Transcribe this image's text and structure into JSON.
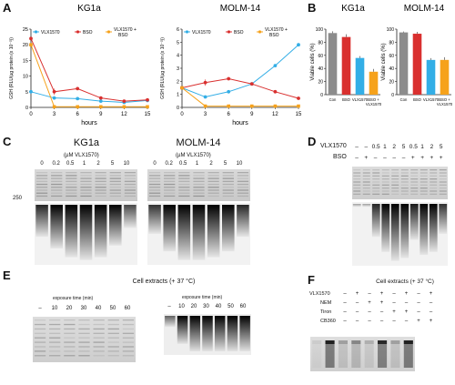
{
  "panels": {
    "A": "A",
    "B": "B",
    "C": "C",
    "D": "D",
    "E": "E",
    "F": "F"
  },
  "panel_a": {
    "ylabel": "GSH (RLU/µg protein (x 10⁻³))",
    "xlabel": "hours",
    "legend": [
      "VLX1570",
      "BSO",
      "VLX1570 + BSO"
    ],
    "charts": [
      {
        "title": "KG1a",
        "yticks": [
          "0",
          "5",
          "10",
          "15",
          "20",
          "25"
        ],
        "xticks": [
          "0",
          "3",
          "6",
          "9",
          "12",
          "15"
        ]
      },
      {
        "title": "MOLM-14",
        "yticks": [
          "0",
          "1",
          "2",
          "3",
          "4",
          "5",
          "6"
        ],
        "xticks": [
          "0",
          "3",
          "6",
          "9",
          "12",
          "15"
        ]
      }
    ]
  },
  "panel_b": {
    "ylabel": "Viable cells (%)",
    "charts": [
      {
        "title": "KG1a",
        "yticks": [
          "0",
          "20",
          "40",
          "60",
          "80",
          "100"
        ]
      },
      {
        "title": "MOLM-14",
        "yticks": [
          "0",
          "20",
          "40",
          "60",
          "80",
          "100"
        ]
      }
    ],
    "categories": [
      "Con",
      "BSO",
      "VLX1570",
      "BSO + VLX1570"
    ]
  },
  "panel_c": {
    "gels": [
      {
        "title": "KG1a",
        "conc_label": "(µM VLX1570)",
        "lanes": [
          "0",
          "0.2",
          "0.5",
          "1",
          "2",
          "5",
          "10"
        ]
      },
      {
        "title": "MOLM-14",
        "conc_label": "(µM VLX1570)",
        "lanes": [
          "0",
          "0.2",
          "0.5",
          "1",
          "2",
          "5",
          "10"
        ]
      }
    ],
    "marker": "250"
  },
  "panel_d": {
    "row1_label": "VLX1570",
    "row1": [
      "–",
      "–",
      "0.5",
      "1",
      "2",
      "5",
      "0.5",
      "1",
      "2",
      "5"
    ],
    "row2_label": "BSO",
    "row2": [
      "–",
      "+",
      "–",
      "–",
      "–",
      "–",
      "+",
      "+",
      "+",
      "+"
    ]
  },
  "panel_e": {
    "title": "Cell extracts  (+ 37 °C)",
    "gels": [
      {
        "label": "exposure time (min)",
        "lanes": [
          "–",
          "10",
          "20",
          "30",
          "40",
          "50",
          "60"
        ]
      },
      {
        "label": "exposure time (min)",
        "lanes": [
          "–",
          "10",
          "20",
          "30",
          "40",
          "50",
          "60"
        ]
      }
    ]
  },
  "panel_f": {
    "title": "Cell extracts (+ 37 °C)",
    "rows": [
      {
        "label": "VLX1570",
        "marks": [
          "–",
          "+",
          "–",
          "+",
          "–",
          "+",
          "–",
          "+"
        ]
      },
      {
        "label": "NEM",
        "marks": [
          "–",
          "–",
          "+",
          "+",
          "–",
          "–",
          "–",
          "–"
        ]
      },
      {
        "label": "Tiron",
        "marks": [
          "–",
          "–",
          "–",
          "–",
          "+",
          "+",
          "–",
          "–"
        ]
      },
      {
        "label": "CB360",
        "marks": [
          "–",
          "–",
          "–",
          "–",
          "–",
          "–",
          "+",
          "+"
        ]
      }
    ]
  },
  "chart_data": [
    {
      "type": "line",
      "title": "KG1a",
      "xlabel": "hours",
      "ylabel": "GSH (RLU/µg protein (x 10⁻³))",
      "x": [
        0,
        3,
        6,
        9,
        12,
        15
      ],
      "ylim": [
        0,
        25
      ],
      "series": [
        {
          "name": "VLX1570",
          "values": [
            5,
            3,
            2.8,
            2,
            1.6,
            2.2
          ]
        },
        {
          "name": "BSO",
          "values": [
            22,
            5,
            6,
            3,
            2,
            2.4
          ]
        },
        {
          "name": "VLX1570 + BSO",
          "values": [
            20,
            0.2,
            0.2,
            0.2,
            0.2,
            0.2
          ]
        }
      ]
    },
    {
      "type": "line",
      "title": "MOLM-14",
      "xlabel": "hours",
      "ylabel": "GSH (RLU/µg protein (x 10⁻³))",
      "x": [
        0,
        3,
        6,
        9,
        12,
        15
      ],
      "ylim": [
        0,
        6
      ],
      "series": [
        {
          "name": "VLX1570",
          "values": [
            1.5,
            0.8,
            1.2,
            1.8,
            3.2,
            4.8
          ]
        },
        {
          "name": "BSO",
          "values": [
            1.5,
            1.9,
            2.2,
            1.8,
            1.2,
            0.7
          ]
        },
        {
          "name": "VLX1570 + BSO",
          "values": [
            1.5,
            0.1,
            0.1,
            0.1,
            0.1,
            0.1
          ]
        }
      ]
    },
    {
      "type": "bar",
      "title": "KG1a",
      "ylabel": "Viable cells (%)",
      "ylim": [
        0,
        100
      ],
      "categories": [
        "Con",
        "BSO",
        "VLX1570",
        "BSO + VLX1570"
      ],
      "values": [
        94,
        88,
        56,
        35
      ]
    },
    {
      "type": "bar",
      "title": "MOLM-14",
      "ylabel": "Viable cells (%)",
      "ylim": [
        0,
        100
      ],
      "categories": [
        "Con",
        "BSO",
        "VLX1570",
        "BSO + VLX1570"
      ],
      "values": [
        95,
        93,
        53,
        53
      ]
    }
  ],
  "colors": {
    "vlx": "#33aee6",
    "bso": "#d9302f",
    "combo": "#f6a21b",
    "con": "#8c8c8c",
    "grid": "#e6e6e6"
  }
}
